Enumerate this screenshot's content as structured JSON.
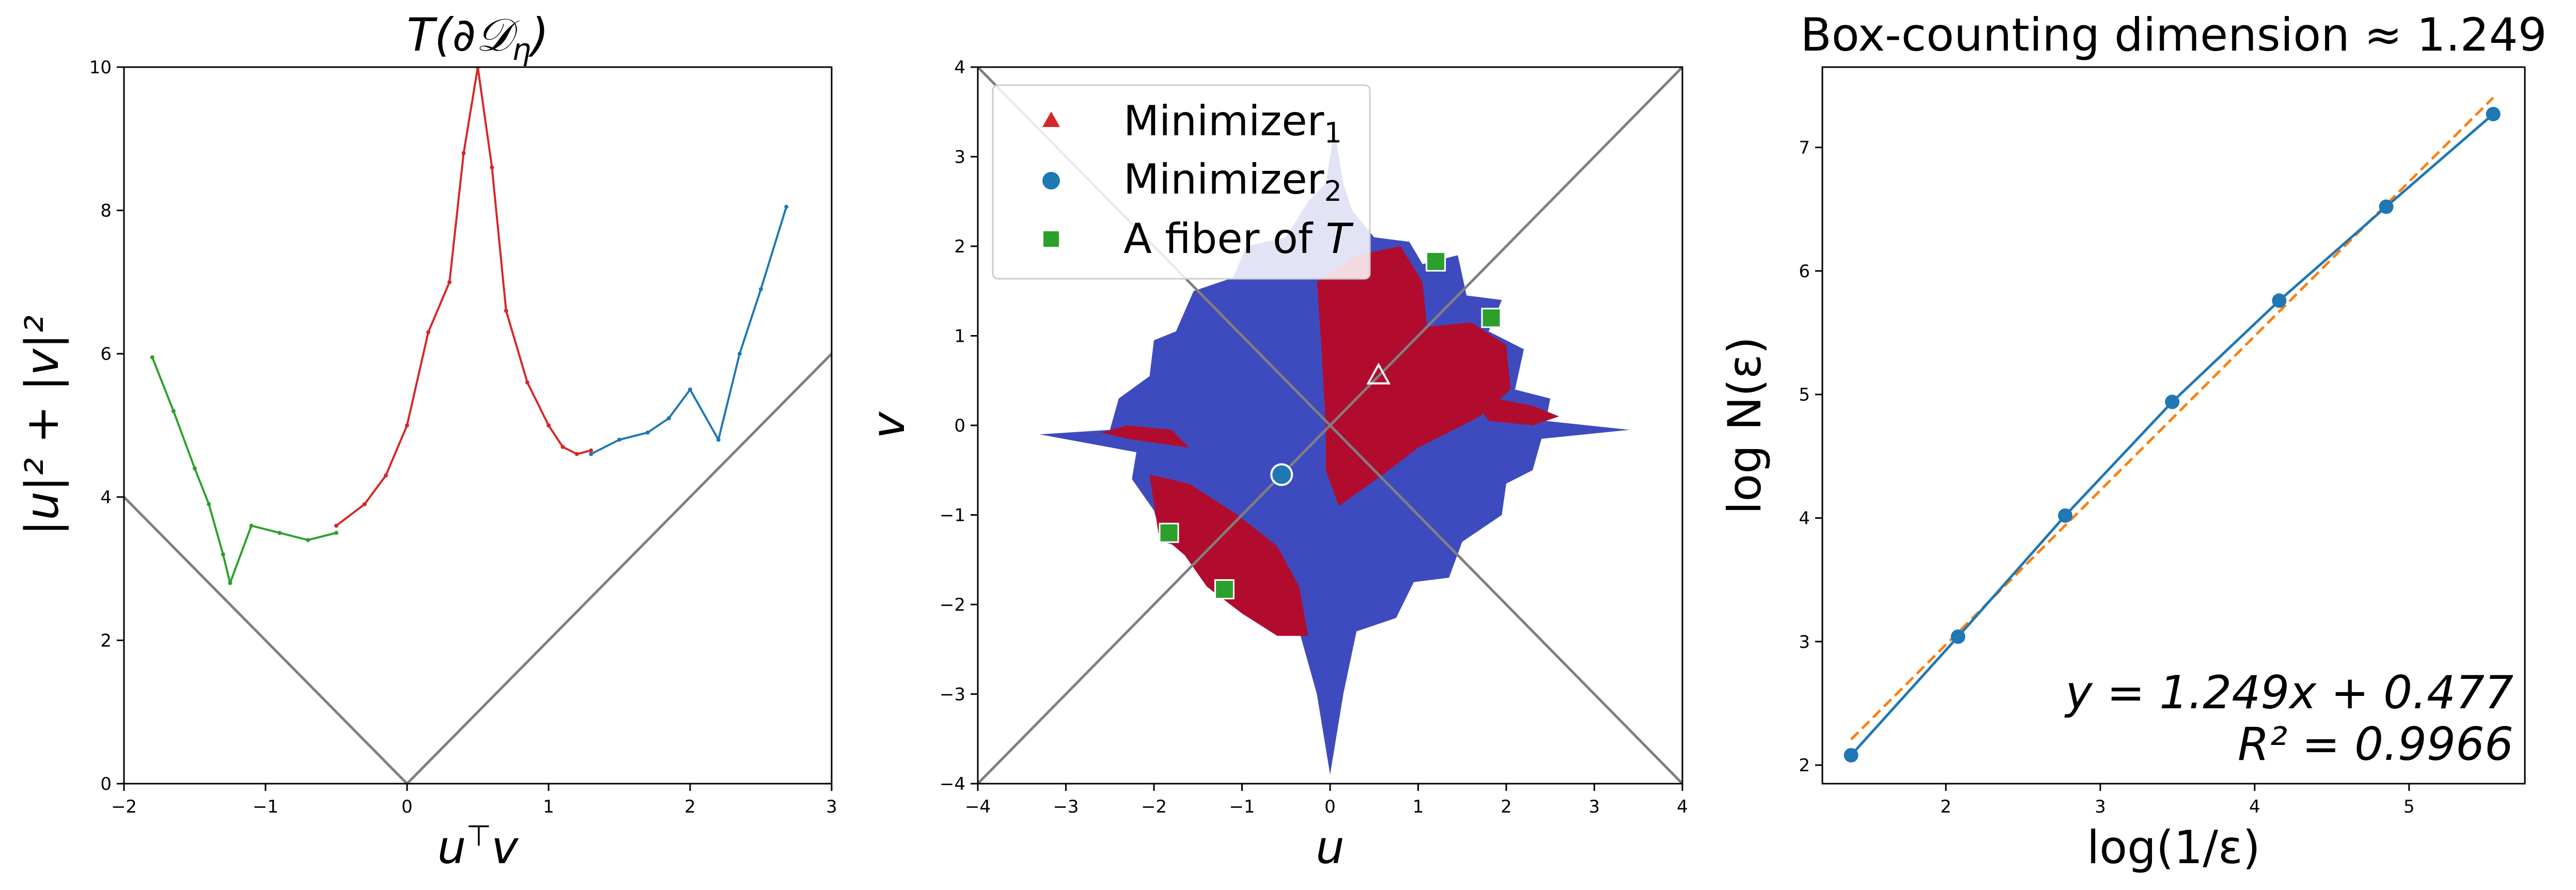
{
  "charts": {
    "left": {
      "title": "T(∂𝒟",
      "title_sub": "η",
      "title_close": ")",
      "xlabel": "u",
      "xlabel_sup": "⊤",
      "xlabel_tail": "v",
      "ylabel": "|u|² + |v|²",
      "xticks": [
        "−2",
        "−1",
        "0",
        "1",
        "2",
        "3"
      ],
      "yticks": [
        "0",
        "2",
        "4",
        "6",
        "8",
        "10"
      ]
    },
    "middle": {
      "xlabel": "u",
      "ylabel": "v",
      "xticks": [
        "−4",
        "−3",
        "−2",
        "−1",
        "0",
        "1",
        "2",
        "3",
        "4"
      ],
      "yticks": [
        "−4",
        "−3",
        "−2",
        "−1",
        "0",
        "1",
        "2",
        "3",
        "4"
      ],
      "legend": [
        {
          "label": "Minimizer",
          "sub": "1",
          "marker": "triangle",
          "color": "#d62728"
        },
        {
          "label": "Minimizer",
          "sub": "2",
          "marker": "circle",
          "color": "#1f77b4"
        },
        {
          "label": "A fiber of ",
          "italic": "T",
          "marker": "square",
          "color": "#2ca02c"
        }
      ]
    },
    "right": {
      "title": "Box-counting dimension ≈ 1.249",
      "xlabel": "log(1/ε)",
      "ylabel": "log N(ε)",
      "xticks": [
        "2",
        "3",
        "4",
        "5"
      ],
      "yticks": [
        "2",
        "3",
        "4",
        "5",
        "6",
        "7"
      ],
      "equation_line1": "y = 1.249x + 0.477",
      "equation_line2": "R² = 0.9966"
    }
  },
  "chart_data": [
    {
      "type": "scatter",
      "xlim": [
        -2,
        3
      ],
      "ylim": [
        0,
        10
      ],
      "reference_lines": [
        {
          "color": "#7f7f7f",
          "points": [
            [
              -2,
              4
            ],
            [
              0,
              0
            ],
            [
              3,
              6
            ]
          ]
        }
      ],
      "series": [
        {
          "color": "#2ca02c",
          "points": [
            [
              -1.8,
              5.95
            ],
            [
              -1.65,
              5.2
            ],
            [
              -1.5,
              4.4
            ],
            [
              -1.4,
              3.9
            ],
            [
              -1.3,
              3.2
            ],
            [
              -1.25,
              2.8
            ],
            [
              -1.1,
              3.6
            ],
            [
              -0.9,
              3.5
            ],
            [
              -0.7,
              3.4
            ],
            [
              -0.5,
              3.5
            ]
          ]
        },
        {
          "color": "#d62728",
          "points": [
            [
              -0.5,
              3.6
            ],
            [
              -0.3,
              3.9
            ],
            [
              -0.15,
              4.3
            ],
            [
              0.0,
              5.0
            ],
            [
              0.15,
              6.3
            ],
            [
              0.3,
              7.0
            ],
            [
              0.4,
              8.8
            ],
            [
              0.5,
              10.0
            ],
            [
              0.6,
              8.6
            ],
            [
              0.7,
              6.6
            ],
            [
              0.85,
              5.6
            ],
            [
              1.0,
              5.0
            ],
            [
              1.1,
              4.7
            ],
            [
              1.2,
              4.6
            ],
            [
              1.3,
              4.65
            ]
          ]
        },
        {
          "color": "#1f77b4",
          "points": [
            [
              1.3,
              4.6
            ],
            [
              1.5,
              4.8
            ],
            [
              1.7,
              4.9
            ],
            [
              1.85,
              5.1
            ],
            [
              2.0,
              5.5
            ],
            [
              2.2,
              4.8
            ],
            [
              2.35,
              6.0
            ],
            [
              2.5,
              6.9
            ],
            [
              2.68,
              8.05
            ]
          ]
        }
      ]
    },
    {
      "type": "heatmap",
      "xlim": [
        -4,
        4
      ],
      "ylim": [
        -4,
        4
      ],
      "regions": [
        {
          "name": "",
          "color": "#b10c2e"
        },
        {
          "name": "",
          "color": "#3e4bbf"
        }
      ],
      "reference_lines": [
        {
          "color": "#7f7f7f",
          "points": [
            [
              -4,
              -4
            ],
            [
              4,
              4
            ]
          ]
        },
        {
          "color": "#7f7f7f",
          "points": [
            [
              -4,
              4
            ],
            [
              4,
              -4
            ]
          ]
        }
      ],
      "series": [
        {
          "name": "Minimizer_1",
          "marker": "triangle",
          "color": "#d62728",
          "points": [
            [
              0.55,
              0.55
            ]
          ]
        },
        {
          "name": "Minimizer_2",
          "marker": "circle",
          "color": "#1f77b4",
          "points": [
            [
              -0.55,
              -0.55
            ]
          ]
        },
        {
          "name": "A fiber of T",
          "marker": "square",
          "color": "#2ca02c",
          "points": [
            [
              1.2,
              1.83
            ],
            [
              1.83,
              1.2
            ],
            [
              -1.83,
              -1.2
            ],
            [
              -1.2,
              -1.83
            ]
          ]
        }
      ]
    },
    {
      "type": "line",
      "xlim": [
        1.2,
        5.75
      ],
      "ylim": [
        1.85,
        7.65
      ],
      "series": [
        {
          "name": "",
          "color": "#1f77b4",
          "x": [
            1.386,
            2.079,
            2.773,
            3.466,
            4.159,
            4.852,
            5.545
          ],
          "y": [
            2.08,
            3.04,
            4.02,
            4.94,
            5.76,
            6.52,
            7.27
          ]
        },
        {
          "name": "",
          "color": "#ff7f0e",
          "dashed": true,
          "x": [
            1.386,
            5.545
          ],
          "y": [
            2.208,
            7.403
          ]
        }
      ]
    }
  ]
}
